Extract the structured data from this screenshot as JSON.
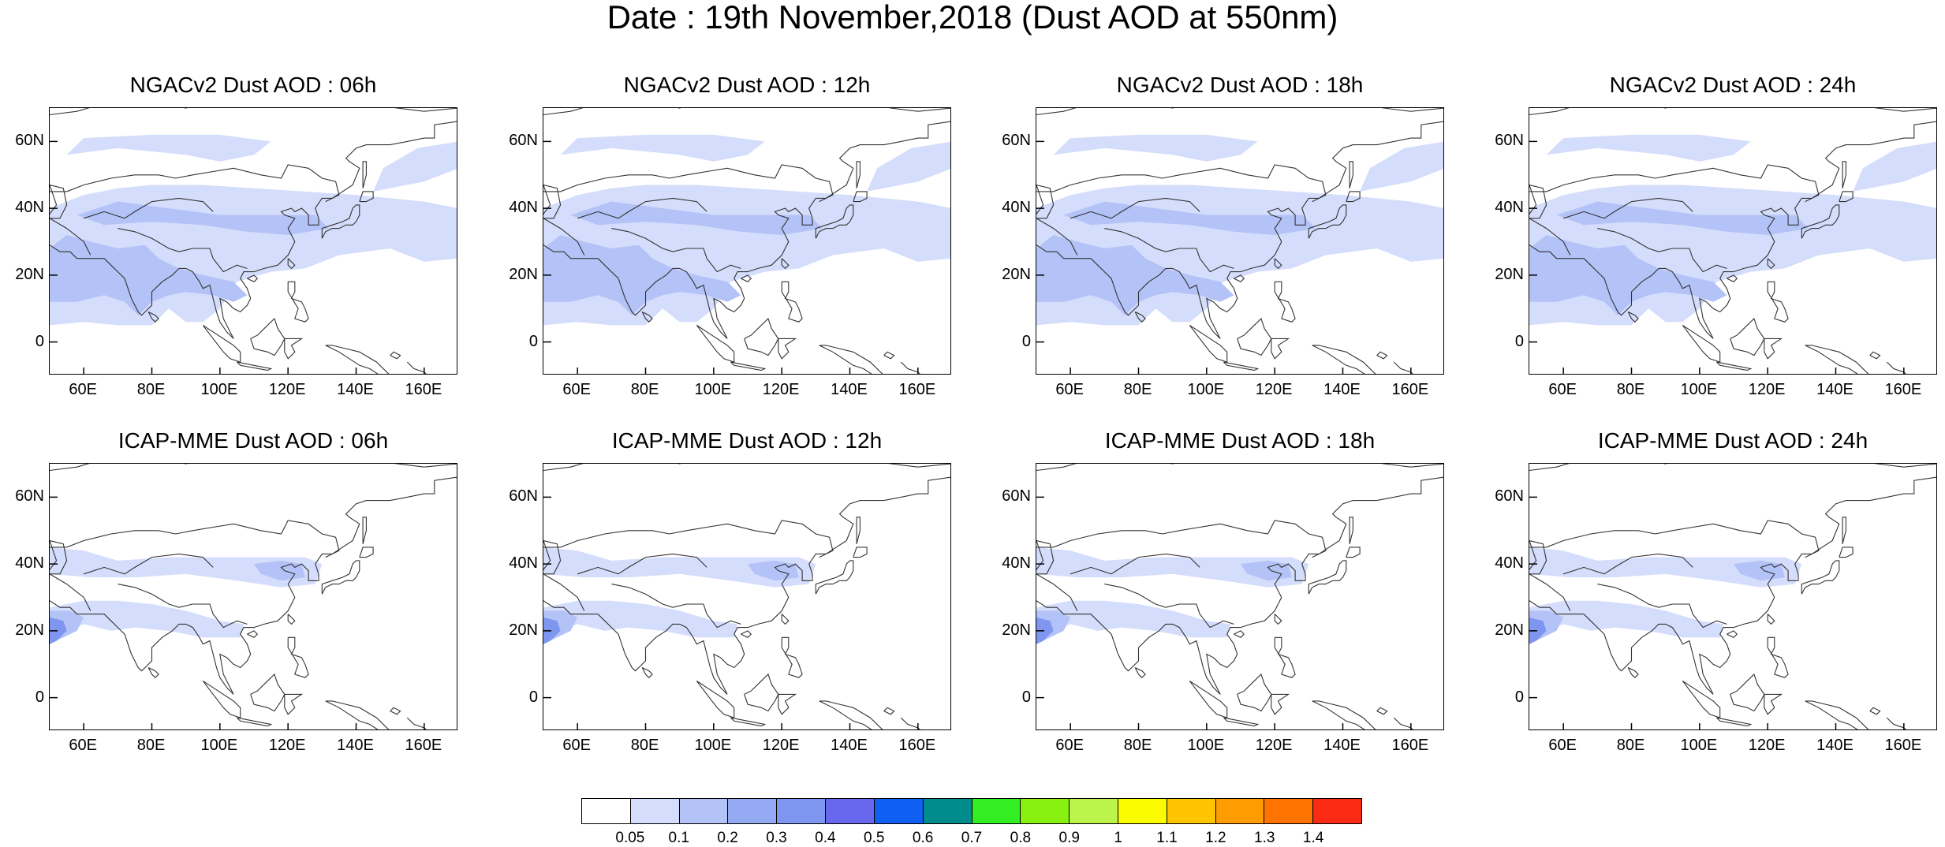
{
  "title": "Date : 19th November,2018 (Dust AOD at 550nm)",
  "panels": [
    {
      "title": "NGACv2 Dust AOD : 06h",
      "model": "ngac"
    },
    {
      "title": "NGACv2 Dust AOD : 12h",
      "model": "ngac"
    },
    {
      "title": "NGACv2 Dust AOD : 18h",
      "model": "ngac"
    },
    {
      "title": "NGACv2 Dust AOD : 24h",
      "model": "ngac"
    },
    {
      "title": "ICAP-MME Dust AOD : 06h",
      "model": "icap"
    },
    {
      "title": "ICAP-MME Dust AOD : 12h",
      "model": "icap"
    },
    {
      "title": "ICAP-MME Dust AOD : 18h",
      "model": "icap"
    },
    {
      "title": "ICAP-MME Dust AOD : 24h",
      "model": "icap"
    }
  ],
  "map_extent": {
    "lon": [
      50,
      170
    ],
    "lat": [
      -10,
      70
    ]
  },
  "lat_ticks": [
    {
      "value": 60,
      "label": "60N"
    },
    {
      "value": 40,
      "label": "40N"
    },
    {
      "value": 20,
      "label": "20N"
    },
    {
      "value": 0,
      "label": "0"
    }
  ],
  "lon_ticks": [
    {
      "value": 60,
      "label": "60E"
    },
    {
      "value": 80,
      "label": "80E"
    },
    {
      "value": 100,
      "label": "100E"
    },
    {
      "value": 120,
      "label": "120E"
    },
    {
      "value": 140,
      "label": "140E"
    },
    {
      "value": 160,
      "label": "160E"
    }
  ],
  "colorbar": {
    "colors": [
      "#ffffff",
      "#d4ddfb",
      "#b3c2f7",
      "#94aaf3",
      "#7f96f0",
      "#6868ee",
      "#0f5ff2",
      "#008c8c",
      "#33ee22",
      "#88f011",
      "#bbf44d",
      "#fbfb00",
      "#ffc400",
      "#ff9c00",
      "#ff7300",
      "#fb2a12"
    ],
    "labels": [
      "0.05",
      "0.1",
      "0.2",
      "0.3",
      "0.4",
      "0.5",
      "0.6",
      "0.7",
      "0.8",
      "0.9",
      "1",
      "1.1",
      "1.2",
      "1.3",
      "1.4"
    ]
  },
  "colors": {
    "ngac_light": "#d4ddfb",
    "ngac_mid": "#b3c2f7",
    "icap_light": "#d4ddfb",
    "icap_mid": "#b3c2f7",
    "icap_dark": "#7f96f0"
  }
}
